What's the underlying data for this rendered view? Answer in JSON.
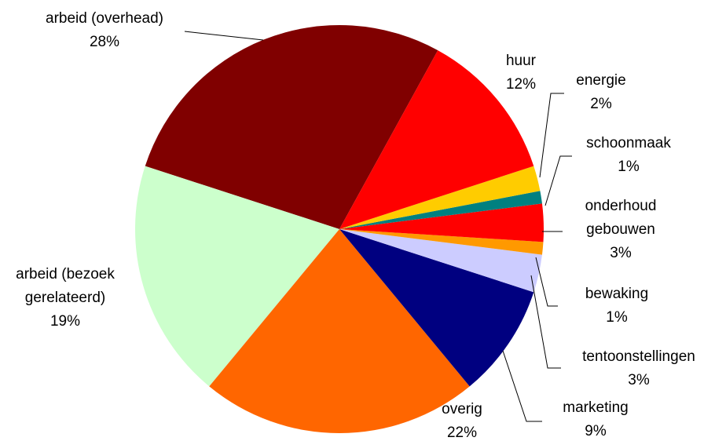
{
  "chart_data": {
    "type": "pie",
    "categories": [
      "huur",
      "energie",
      "schoonmaak",
      "onderhoud gebouwen",
      "bewaking",
      "tentoonstellingen",
      "marketing",
      "overig",
      "arbeid (bezoek gerelateerd)",
      "arbeid (overhead)"
    ],
    "values": [
      12,
      2,
      1,
      3,
      1,
      3,
      9,
      22,
      19,
      28
    ],
    "value_labels": [
      "12%",
      "2%",
      "1%",
      "3%",
      "1%",
      "3%",
      "9%",
      "22%",
      "19%",
      "28%"
    ],
    "colors": [
      "#ff0000",
      "#ffcc00",
      "#008080",
      "#ff0000",
      "#ff9900",
      "#ccccff",
      "#000080",
      "#ff6600",
      "#ccffcc",
      "#800000"
    ]
  }
}
